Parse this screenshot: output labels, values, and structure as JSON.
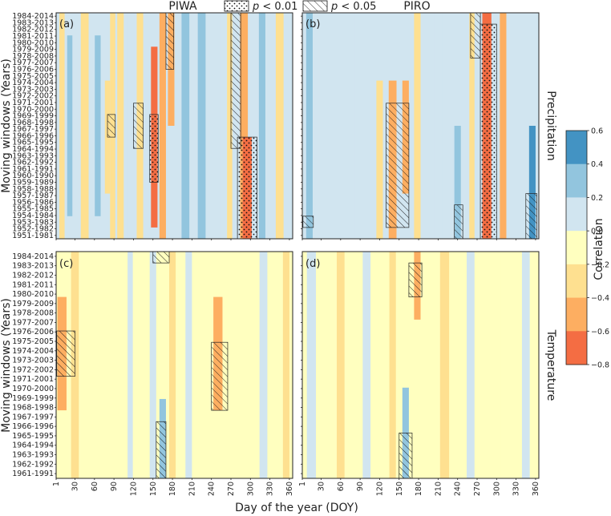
{
  "chart_data": {
    "type": "heatmap",
    "title_left": "PIWA",
    "title_right": "PIRO",
    "legend": [
      {
        "pattern": "dots",
        "label_prefix": "p",
        "label_suffix": " < 0.01"
      },
      {
        "pattern": "hatch",
        "label_prefix": "p",
        "label_suffix": " < 0.05"
      }
    ],
    "xlabel": "Day of the year (DOY)",
    "ylabel": "Moving windows (Years)",
    "row_labels": [
      "Precipitation",
      "Temperature"
    ],
    "x_ticks": [
      "1",
      "30",
      "60",
      "90",
      "120",
      "150",
      "180",
      "210",
      "240",
      "270",
      "300",
      "330",
      "360"
    ],
    "y_ticks_precip": [
      "1984-2014",
      "1983-2013",
      "1982-2012",
      "1981-2011",
      "1980-2010",
      "1979-2009",
      "1978-2008",
      "1977-2007",
      "1976-2006",
      "1975-2005",
      "1974-2004",
      "1973-2003",
      "1972-2002",
      "1971-2001",
      "1970-2000",
      "1969-1999",
      "1968-1998",
      "1967-1997",
      "1966-1996",
      "1965-1995",
      "1964-1994",
      "1963-1993",
      "1962-1992",
      "1961-1991",
      "1960-1990",
      "1959-1989",
      "1958-1988",
      "1957-1987",
      "1956-1986",
      "1955-1985",
      "1954-1984",
      "1953-1983",
      "1952-1982",
      "1951-1981"
    ],
    "y_ticks_temp": [
      "1984-2014",
      "1983-2013",
      "1982-2012",
      "1981-2011",
      "1980-2010",
      "1979-2009",
      "1978-2008",
      "1977-2007",
      "1976-2006",
      "1975-2005",
      "1974-2004",
      "1973-2003",
      "1972-2002",
      "1971-2001",
      "1970-2000",
      "1969-1999",
      "1968-1998",
      "1967-1997",
      "1966-1996",
      "1965-1995",
      "1964-1994",
      "1963-1993",
      "1962-1992",
      "1961-1991"
    ],
    "colorbar": {
      "label": "Correlation",
      "ticks": [
        "0.6",
        "0.4",
        "0.2",
        "0.0",
        "−0.2",
        "−0.4",
        "−0.6",
        "−0.8"
      ],
      "levels": [
        0.6,
        0.4,
        0.2,
        0.0,
        -0.2,
        -0.4,
        -0.6,
        -0.8
      ],
      "colors": [
        "#4393c3",
        "#92c5de",
        "#d1e5f0",
        "#ffffbf",
        "#fee090",
        "#fdae61",
        "#f46d43",
        "#d73027"
      ]
    },
    "panels": [
      {
        "label": "(a)",
        "x_range": [
          1,
          365
        ],
        "background": 0.1,
        "features": [
          {
            "doy": 10,
            "w": 8,
            "y0": 0.0,
            "y1": 1.0,
            "v": -0.25
          },
          {
            "doy": 22,
            "w": 8,
            "y0": 0.1,
            "y1": 0.9,
            "v": 0.25
          },
          {
            "doy": 45,
            "w": 12,
            "y0": 0.0,
            "y1": 1.0,
            "v": -0.3
          },
          {
            "doy": 65,
            "w": 9,
            "y0": 0.1,
            "y1": 0.9,
            "v": 0.3
          },
          {
            "doy": 80,
            "w": 8,
            "y0": 0.3,
            "y1": 0.8,
            "v": -0.3
          },
          {
            "doy": 88,
            "w": 8,
            "y0": 0.0,
            "y1": 1.0,
            "v": -0.3
          },
          {
            "doy": 100,
            "w": 10,
            "y0": 0.0,
            "y1": 1.0,
            "v": -0.35
          },
          {
            "doy": 115,
            "w": 8,
            "y0": 0.0,
            "y1": 1.0,
            "v": 0.2
          },
          {
            "doy": 130,
            "w": 10,
            "y0": 0.0,
            "y1": 1.0,
            "v": -0.35
          },
          {
            "doy": 152,
            "w": 10,
            "y0": 0.15,
            "y1": 0.95,
            "v": -0.6
          },
          {
            "doy": 165,
            "w": 10,
            "y0": 0.0,
            "y1": 1.0,
            "v": -0.45
          },
          {
            "doy": 178,
            "w": 10,
            "y0": 0.0,
            "y1": 0.5,
            "v": -0.5
          },
          {
            "doy": 200,
            "w": 12,
            "y0": 0.0,
            "y1": 1.0,
            "v": 0.35
          },
          {
            "doy": 225,
            "w": 12,
            "y0": 0.0,
            "y1": 1.0,
            "v": 0.3
          },
          {
            "doy": 250,
            "w": 10,
            "y0": 0.0,
            "y1": 1.0,
            "v": 0.15
          },
          {
            "doy": 268,
            "w": 8,
            "y0": 0.0,
            "y1": 1.0,
            "v": -0.35
          },
          {
            "doy": 290,
            "w": 12,
            "y0": 0.0,
            "y1": 1.0,
            "v": -0.5
          },
          {
            "doy": 295,
            "w": 14,
            "y0": 0.55,
            "y1": 1.0,
            "v": -0.75
          },
          {
            "doy": 318,
            "w": 10,
            "y0": 0.0,
            "y1": 1.0,
            "v": 0.3
          },
          {
            "doy": 345,
            "w": 12,
            "y0": 0.0,
            "y1": 1.0,
            "v": -0.35
          }
        ],
        "significance": [
          {
            "p": 0.01,
            "doy_min": 145,
            "doy_max": 158,
            "y0": 0.45,
            "y1": 0.75
          },
          {
            "p": 0.01,
            "doy_min": 280,
            "doy_max": 310,
            "y0": 0.55,
            "y1": 1.0
          },
          {
            "p": 0.05,
            "doy_min": 170,
            "doy_max": 182,
            "y0": 0.0,
            "y1": 0.25
          },
          {
            "p": 0.05,
            "doy_min": 120,
            "doy_max": 135,
            "y0": 0.4,
            "y1": 0.6
          },
          {
            "p": 0.05,
            "doy_min": 270,
            "doy_max": 285,
            "y0": 0.0,
            "y1": 0.6
          },
          {
            "p": 0.05,
            "doy_min": 80,
            "doy_max": 92,
            "y0": 0.45,
            "y1": 0.55
          }
        ]
      },
      {
        "label": "(b)",
        "x_range": [
          1,
          365
        ],
        "background": 0.1,
        "features": [
          {
            "doy": 12,
            "w": 10,
            "y0": 0.0,
            "y1": 1.0,
            "v": 0.25
          },
          {
            "doy": 40,
            "w": 12,
            "y0": 0.0,
            "y1": 1.0,
            "v": 0.2
          },
          {
            "doy": 75,
            "w": 14,
            "y0": 0.0,
            "y1": 1.0,
            "v": 0.15
          },
          {
            "doy": 120,
            "w": 10,
            "y0": 0.3,
            "y1": 1.0,
            "v": -0.35
          },
          {
            "doy": 140,
            "w": 12,
            "y0": 0.3,
            "y1": 1.0,
            "v": -0.45
          },
          {
            "doy": 160,
            "w": 10,
            "y0": 0.3,
            "y1": 0.8,
            "v": -0.5
          },
          {
            "doy": 178,
            "w": 10,
            "y0": 0.0,
            "y1": 1.0,
            "v": -0.2
          },
          {
            "doy": 210,
            "w": 12,
            "y0": 0.0,
            "y1": 1.0,
            "v": 0.15
          },
          {
            "doy": 240,
            "w": 10,
            "y0": 0.5,
            "y1": 1.0,
            "v": 0.4
          },
          {
            "doy": 262,
            "w": 8,
            "y0": 0.0,
            "y1": 1.0,
            "v": -0.35
          },
          {
            "doy": 285,
            "w": 14,
            "y0": 0.0,
            "y1": 1.0,
            "v": -0.65
          },
          {
            "doy": 310,
            "w": 10,
            "y0": 0.0,
            "y1": 1.0,
            "v": -0.4
          },
          {
            "doy": 335,
            "w": 10,
            "y0": 0.0,
            "y1": 1.0,
            "v": 0.2
          },
          {
            "doy": 355,
            "w": 10,
            "y0": 0.5,
            "y1": 1.0,
            "v": 0.45
          }
        ],
        "significance": [
          {
            "p": 0.01,
            "doy_min": 275,
            "doy_max": 300,
            "y0": 0.05,
            "y1": 1.0
          },
          {
            "p": 0.05,
            "doy_min": 260,
            "doy_max": 275,
            "y0": 0.0,
            "y1": 0.2
          },
          {
            "p": 0.05,
            "doy_min": 130,
            "doy_max": 165,
            "y0": 0.4,
            "y1": 0.95
          },
          {
            "p": 0.05,
            "doy_min": 235,
            "doy_max": 248,
            "y0": 0.85,
            "y1": 1.0
          },
          {
            "p": 0.05,
            "doy_min": 345,
            "doy_max": 362,
            "y0": 0.8,
            "y1": 1.0
          },
          {
            "p": 0.05,
            "doy_min": 2,
            "doy_max": 18,
            "y0": 0.9,
            "y1": 0.95
          }
        ]
      },
      {
        "label": "(c)",
        "x_range": [
          1,
          365
        ],
        "background": -0.1,
        "features": [
          {
            "doy": 10,
            "w": 14,
            "y0": 0.2,
            "y1": 0.7,
            "v": -0.4
          },
          {
            "doy": 30,
            "w": 12,
            "y0": 0.0,
            "y1": 1.0,
            "v": -0.25
          },
          {
            "doy": 90,
            "w": 20,
            "y0": 0.0,
            "y1": 1.0,
            "v": -0.15
          },
          {
            "doy": 115,
            "w": 8,
            "y0": 0.0,
            "y1": 1.0,
            "v": 0.05
          },
          {
            "doy": 150,
            "w": 10,
            "y0": 0.0,
            "y1": 1.0,
            "v": 0.15
          },
          {
            "doy": 165,
            "w": 10,
            "y0": 0.65,
            "y1": 1.0,
            "v": 0.4
          },
          {
            "doy": 180,
            "w": 10,
            "y0": 0.0,
            "y1": 1.0,
            "v": -0.2
          },
          {
            "doy": 205,
            "w": 10,
            "y0": 0.0,
            "y1": 1.0,
            "v": 0.15
          },
          {
            "doy": 250,
            "w": 14,
            "y0": 0.2,
            "y1": 0.7,
            "v": -0.4
          },
          {
            "doy": 290,
            "w": 12,
            "y0": 0.0,
            "y1": 1.0,
            "v": -0.15
          },
          {
            "doy": 320,
            "w": 12,
            "y0": 0.0,
            "y1": 1.0,
            "v": 0.1
          },
          {
            "doy": 355,
            "w": 10,
            "y0": 0.0,
            "y1": 1.0,
            "v": -0.25
          }
        ],
        "significance": [
          {
            "p": 0.05,
            "doy_min": 2,
            "doy_max": 30,
            "y0": 0.35,
            "y1": 0.55
          },
          {
            "p": 0.05,
            "doy_min": 240,
            "doy_max": 265,
            "y0": 0.4,
            "y1": 0.7
          },
          {
            "p": 0.05,
            "doy_min": 155,
            "doy_max": 170,
            "y0": 0.75,
            "y1": 1.0
          },
          {
            "p": 0.05,
            "doy_min": 150,
            "doy_max": 175,
            "y0": 0.0,
            "y1": 0.05
          }
        ]
      },
      {
        "label": "(d)",
        "x_range": [
          1,
          365
        ],
        "background": -0.1,
        "features": [
          {
            "doy": 15,
            "w": 14,
            "y0": 0.0,
            "y1": 1.0,
            "v": 0.1
          },
          {
            "doy": 60,
            "w": 12,
            "y0": 0.0,
            "y1": 1.0,
            "v": -0.25
          },
          {
            "doy": 100,
            "w": 12,
            "y0": 0.0,
            "y1": 1.0,
            "v": 0.1
          },
          {
            "doy": 140,
            "w": 10,
            "y0": 0.0,
            "y1": 1.0,
            "v": -0.2
          },
          {
            "doy": 160,
            "w": 10,
            "y0": 0.6,
            "y1": 1.0,
            "v": 0.4
          },
          {
            "doy": 178,
            "w": 10,
            "y0": 0.0,
            "y1": 0.3,
            "v": -0.4
          },
          {
            "doy": 220,
            "w": 14,
            "y0": 0.0,
            "y1": 1.0,
            "v": -0.25
          },
          {
            "doy": 260,
            "w": 12,
            "y0": 0.0,
            "y1": 1.0,
            "v": 0.15
          },
          {
            "doy": 300,
            "w": 12,
            "y0": 0.0,
            "y1": 1.0,
            "v": -0.15
          },
          {
            "doy": 345,
            "w": 12,
            "y0": 0.0,
            "y1": 1.0,
            "v": 0.2
          }
        ],
        "significance": [
          {
            "p": 0.05,
            "doy_min": 165,
            "doy_max": 185,
            "y0": 0.05,
            "y1": 0.2
          },
          {
            "p": 0.05,
            "doy_min": 150,
            "doy_max": 170,
            "y0": 0.8,
            "y1": 1.0
          }
        ]
      }
    ]
  }
}
